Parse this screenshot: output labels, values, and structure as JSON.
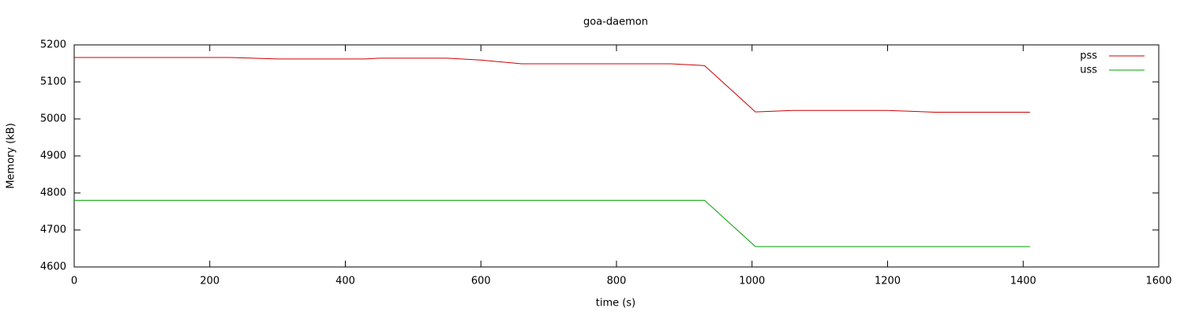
{
  "chart_data": {
    "type": "line",
    "title": "goa-daemon",
    "x_label": "time (s)",
    "y_label": "Memory (kB)",
    "xlim": [
      0,
      1600
    ],
    "xticks": [
      0,
      200,
      400,
      600,
      800,
      1000,
      1200,
      1400,
      1600
    ],
    "ylim": [
      4600,
      5200
    ],
    "yticks": [
      4600,
      4700,
      4800,
      4900,
      5000,
      5100,
      5200
    ],
    "legend": "top-right",
    "series": [
      {
        "name": "pss",
        "color": "#cc0000",
        "x": [
          0,
          230,
          300,
          430,
          450,
          550,
          600,
          660,
          880,
          930,
          1005,
          1060,
          1200,
          1270,
          1410
        ],
        "values": [
          5166,
          5166,
          5162,
          5162,
          5164,
          5164,
          5159,
          5149,
          5149,
          5144,
          5019,
          5023,
          5023,
          5018,
          5018
        ]
      },
      {
        "name": "uss",
        "color": "#00a000",
        "x": [
          0,
          930,
          1005,
          1410
        ],
        "values": [
          4780,
          4780,
          4655,
          4655
        ]
      }
    ]
  }
}
